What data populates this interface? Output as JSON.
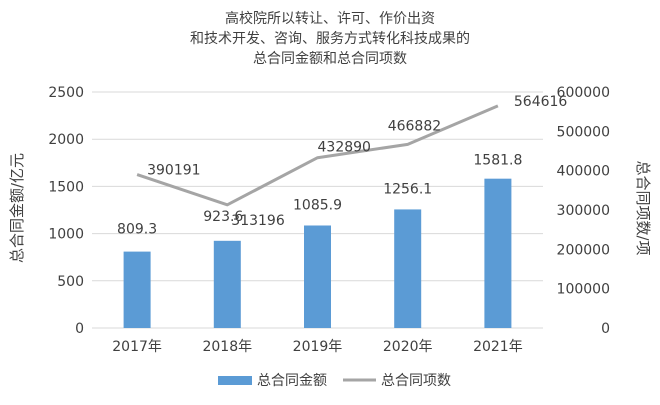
{
  "chart_data": {
    "type": "bar+line",
    "title_lines": [
      "高校院所以转让、许可、作价出资",
      "和技术开发、咨询、服务方式转化科技成果的",
      "总合同金额和总合同项数"
    ],
    "categories": [
      "2017年",
      "2018年",
      "2019年",
      "2020年",
      "2021年"
    ],
    "series": [
      {
        "name": "总合同金额",
        "type": "bar",
        "axis": "left",
        "color": "#5b9bd5",
        "values": [
          809.3,
          923.6,
          1085.9,
          1256.1,
          1581.8
        ],
        "labels": [
          "809.3",
          "923.6",
          "1085.9",
          "1256.1",
          "1581.8"
        ]
      },
      {
        "name": "总合同项数",
        "type": "line",
        "axis": "right",
        "color": "#a5a5a5",
        "values": [
          390191,
          313196,
          432890,
          466882,
          564616
        ],
        "labels": [
          "390191",
          "313196",
          "432890",
          "466882",
          "564616"
        ]
      }
    ],
    "y_left": {
      "label": "总合同金额/亿元",
      "range": [
        0,
        2500
      ],
      "ticks": [
        "0",
        "500",
        "1000",
        "1500",
        "2000",
        "2500"
      ]
    },
    "y_right": {
      "label": "总合同项数/项",
      "range": [
        0,
        600000
      ],
      "ticks": [
        "0",
        "100000",
        "200000",
        "300000",
        "400000",
        "500000",
        "600000"
      ]
    },
    "grid": true,
    "legend_position": "bottom"
  }
}
